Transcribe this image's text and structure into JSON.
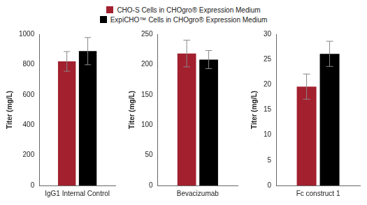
{
  "chart_data": [
    {
      "type": "bar",
      "categories": [
        "IgG1 Internal Control"
      ],
      "ylabel": "Titer (mg/L)",
      "series": [
        {
          "name": "CHO-S Cells in CHOgro® Expression Medium",
          "color": "#a3202f",
          "values": [
            820
          ],
          "errors": [
            65
          ]
        },
        {
          "name": "ExpiCHO™ Cells in CHOgro® Expression Medium",
          "color": "#000000",
          "values": [
            888
          ],
          "errors": [
            90
          ]
        }
      ],
      "ylim": [
        0,
        1000
      ],
      "yticks": [
        0,
        200,
        400,
        600,
        800,
        1000
      ],
      "grid": false,
      "legend": "top"
    },
    {
      "type": "bar",
      "categories": [
        "Bevacizumab"
      ],
      "ylabel": "Titer (mg/L)",
      "series": [
        {
          "name": "CHO-S Cells in CHOgro® Expression Medium",
          "color": "#a3202f",
          "values": [
            218
          ],
          "errors": [
            22
          ]
        },
        {
          "name": "ExpiCHO™ Cells in CHOgro® Expression Medium",
          "color": "#000000",
          "values": [
            208
          ],
          "errors": [
            15
          ]
        }
      ],
      "ylim": [
        0,
        250
      ],
      "yticks": [
        0,
        50,
        100,
        150,
        200,
        250
      ],
      "grid": false,
      "legend": "top"
    },
    {
      "type": "bar",
      "categories": [
        "Fc construct 1"
      ],
      "ylabel": "Titer (mg/L)",
      "series": [
        {
          "name": "CHO-S Cells in CHOgro® Expression Medium",
          "color": "#a3202f",
          "values": [
            19.6
          ],
          "errors": [
            2.5
          ]
        },
        {
          "name": "ExpiCHO™ Cells in CHOgro® Expression Medium",
          "color": "#000000",
          "values": [
            26.1
          ],
          "errors": [
            2.5
          ]
        }
      ],
      "ylim": [
        0,
        30
      ],
      "yticks": [
        0,
        5,
        10,
        15,
        20,
        25,
        30
      ],
      "grid": false,
      "legend": "top"
    }
  ]
}
